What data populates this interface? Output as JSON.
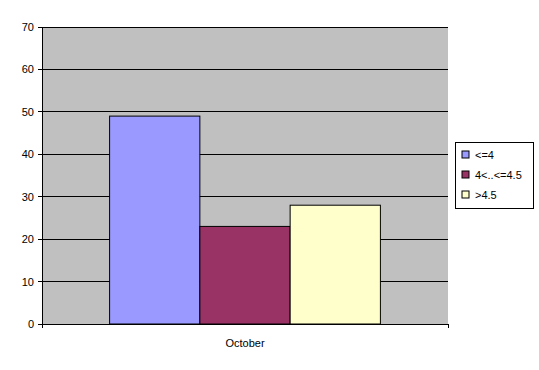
{
  "chart_data": {
    "type": "bar",
    "categories": [
      "October"
    ],
    "series": [
      {
        "name": "<=4",
        "color": "#9999ff",
        "values": [
          49
        ]
      },
      {
        "name": "4<..<=4.5",
        "color": "#993366",
        "values": [
          23
        ]
      },
      {
        "name": ">4.5",
        "color": "#ffffcc",
        "values": [
          28
        ]
      }
    ],
    "ylim": [
      0,
      70
    ],
    "yticks": [
      0,
      10,
      20,
      30,
      40,
      50,
      60,
      70
    ],
    "grid": true,
    "legend": "right"
  }
}
